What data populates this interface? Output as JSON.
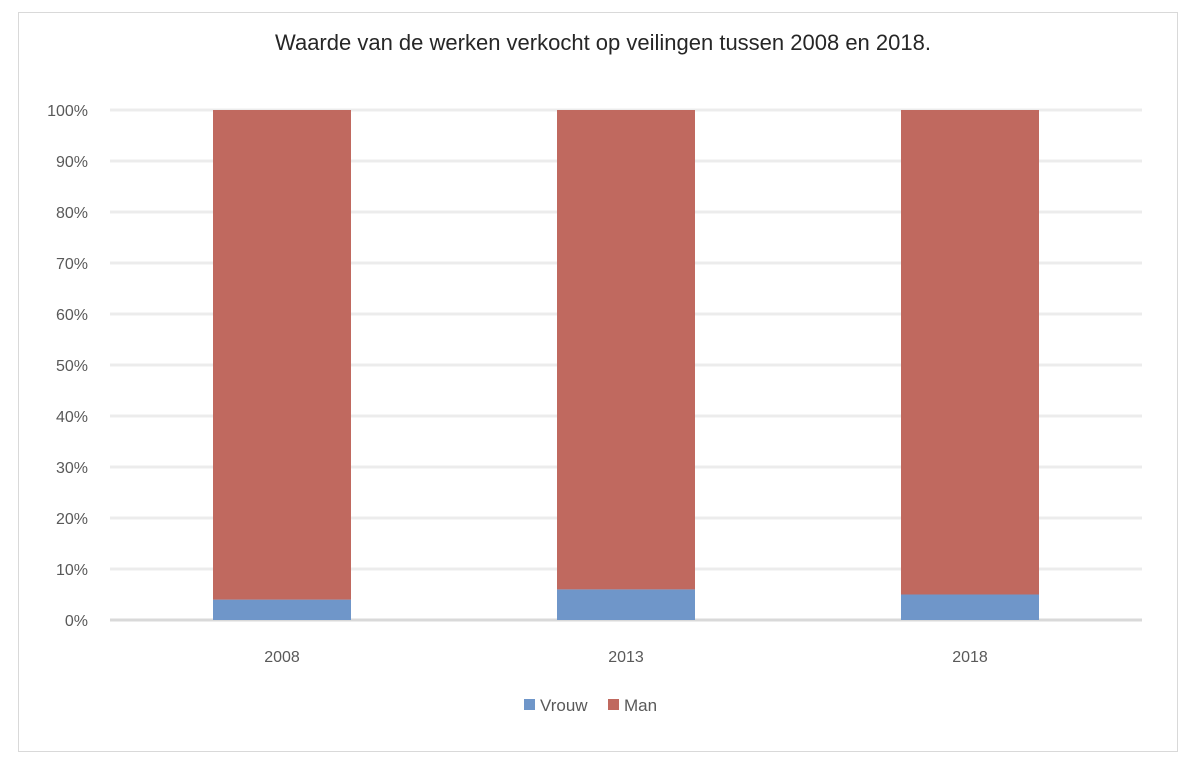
{
  "chart_data": {
    "type": "bar",
    "stacked": true,
    "title": "Waarde van de werken verkocht op veilingen tussen 2008 en 2018.",
    "categories": [
      "2008",
      "2013",
      "2018"
    ],
    "series": [
      {
        "name": "Vrouw",
        "values": [
          4,
          6,
          5
        ],
        "color": "#6f96c9"
      },
      {
        "name": "Man",
        "values": [
          96,
          94,
          95
        ],
        "color": "#c0695f"
      }
    ],
    "ylim": [
      0,
      100
    ],
    "yticks": [
      "0%",
      "10%",
      "20%",
      "30%",
      "40%",
      "50%",
      "60%",
      "70%",
      "80%",
      "90%",
      "100%"
    ],
    "grid": true,
    "legend_position": "bottom"
  }
}
